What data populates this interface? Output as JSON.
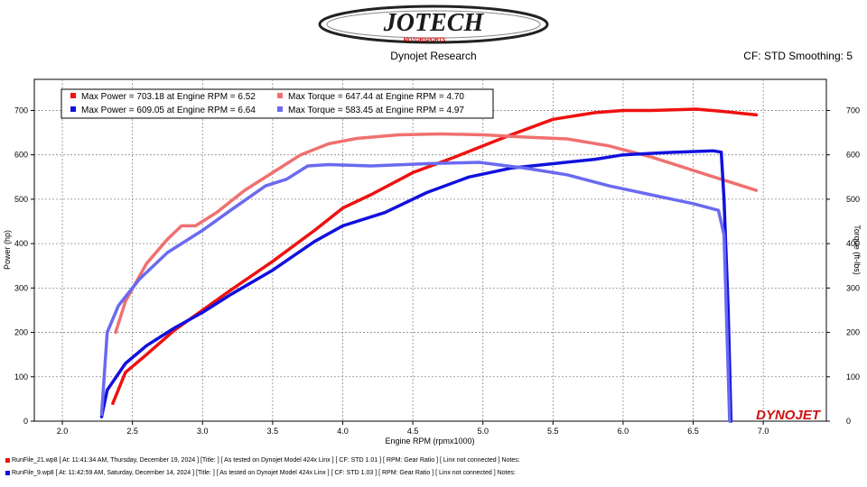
{
  "header": {
    "brand": "JOTECH",
    "brand_sub": "MOTORSPORTS",
    "subtitle": "Dynojet Research",
    "settings": "CF: STD Smoothing: 5"
  },
  "watermark": "DYNOJET",
  "colors": {
    "power_a": "#ee1111",
    "torque_a": "#f07070",
    "power_b": "#1111dd",
    "torque_b": "#6a6af0"
  },
  "footer": {
    "line1": "RunFile_21.wp8 [ At: 11:41:34 AM, Thursday, December 19, 2024 ] [Title: ]  [ As tested on Dynojet Model 424x Linx ] [ CF: STD 1.01 ] [ RPM: Gear Ratio ] [ Linx not connected ] Notes:",
    "line2": "RunFile_9.wp8 [ At: 11:42:59 AM, Saturday, December 14, 2024 ] [Title: ]  [ As tested on Dynojet Model 424x Linx ] [ CF: STD 1.03 ] [ RPM: Gear Ratio ] [ Linx not connected ] Notes:"
  },
  "chart_data": {
    "type": "line",
    "xlabel": "Engine RPM (rpmx1000)",
    "ylabel": "Power (hp)",
    "y2label": "Torque (ft-lbs)",
    "xlim": [
      1.8,
      7.45
    ],
    "ylim": [
      0,
      770
    ],
    "x_ticks": [
      "2.0",
      "2.5",
      "3.0",
      "3.5",
      "4.0",
      "4.5",
      "5.0",
      "5.5",
      "6.0",
      "6.5",
      "7.0"
    ],
    "y_ticks": [
      "0",
      "100",
      "200",
      "300",
      "400",
      "500",
      "600",
      "700"
    ],
    "y2_ticks": [
      "0",
      "100",
      "200",
      "300",
      "400",
      "500",
      "600",
      "700"
    ],
    "grid": true,
    "legend_position": "top-left",
    "legend": [
      {
        "label": "Max Power = 703.18 at Engine RPM = 6.52",
        "color": "#ee1111"
      },
      {
        "label": "Max Torque = 647.44 at Engine RPM = 4.70",
        "color": "#f07070"
      },
      {
        "label": "Max Power = 609.05 at Engine RPM = 6.64",
        "color": "#1111dd"
      },
      {
        "label": "Max Torque = 583.45 at Engine RPM = 4.97",
        "color": "#6a6af0"
      }
    ],
    "series": [
      {
        "color": "#ee1111",
        "axis": "left",
        "x": [
          2.36,
          2.45,
          2.6,
          2.8,
          3.0,
          3.2,
          3.5,
          3.8,
          4.0,
          4.2,
          4.5,
          4.8,
          5.0,
          5.2,
          5.5,
          5.8,
          6.0,
          6.2,
          6.52,
          6.7,
          6.95
        ],
        "y": [
          40,
          110,
          150,
          205,
          250,
          295,
          360,
          430,
          480,
          510,
          560,
          595,
          620,
          645,
          680,
          695,
          700,
          700,
          703,
          698,
          690
        ]
      },
      {
        "color": "#f07070",
        "axis": "right",
        "x": [
          2.38,
          2.45,
          2.6,
          2.75,
          2.85,
          2.95,
          3.1,
          3.3,
          3.5,
          3.7,
          3.9,
          4.1,
          4.4,
          4.7,
          5.0,
          5.3,
          5.6,
          5.9,
          6.2,
          6.5,
          6.8,
          6.95
        ],
        "y": [
          200,
          270,
          355,
          410,
          440,
          440,
          470,
          520,
          560,
          600,
          625,
          637,
          645,
          647,
          645,
          640,
          636,
          620,
          595,
          565,
          535,
          520
        ]
      },
      {
        "color": "#1111dd",
        "axis": "left",
        "x": [
          2.28,
          2.32,
          2.45,
          2.6,
          2.8,
          3.0,
          3.2,
          3.5,
          3.8,
          4.0,
          4.3,
          4.6,
          4.9,
          5.2,
          5.5,
          5.8,
          6.0,
          6.3,
          6.64,
          6.7,
          6.72,
          6.75,
          6.77
        ],
        "y": [
          10,
          70,
          130,
          170,
          210,
          245,
          285,
          340,
          405,
          440,
          470,
          515,
          550,
          570,
          580,
          590,
          600,
          605,
          609,
          606,
          500,
          250,
          0
        ]
      },
      {
        "color": "#6a6af0",
        "axis": "right",
        "x": [
          2.28,
          2.32,
          2.4,
          2.55,
          2.75,
          3.0,
          3.2,
          3.45,
          3.6,
          3.75,
          3.9,
          4.2,
          4.6,
          4.97,
          5.3,
          5.6,
          5.9,
          6.2,
          6.5,
          6.68,
          6.72,
          6.76
        ],
        "y": [
          15,
          200,
          260,
          320,
          380,
          430,
          475,
          530,
          545,
          575,
          578,
          575,
          580,
          583,
          570,
          555,
          530,
          510,
          490,
          475,
          420,
          0
        ]
      }
    ]
  }
}
